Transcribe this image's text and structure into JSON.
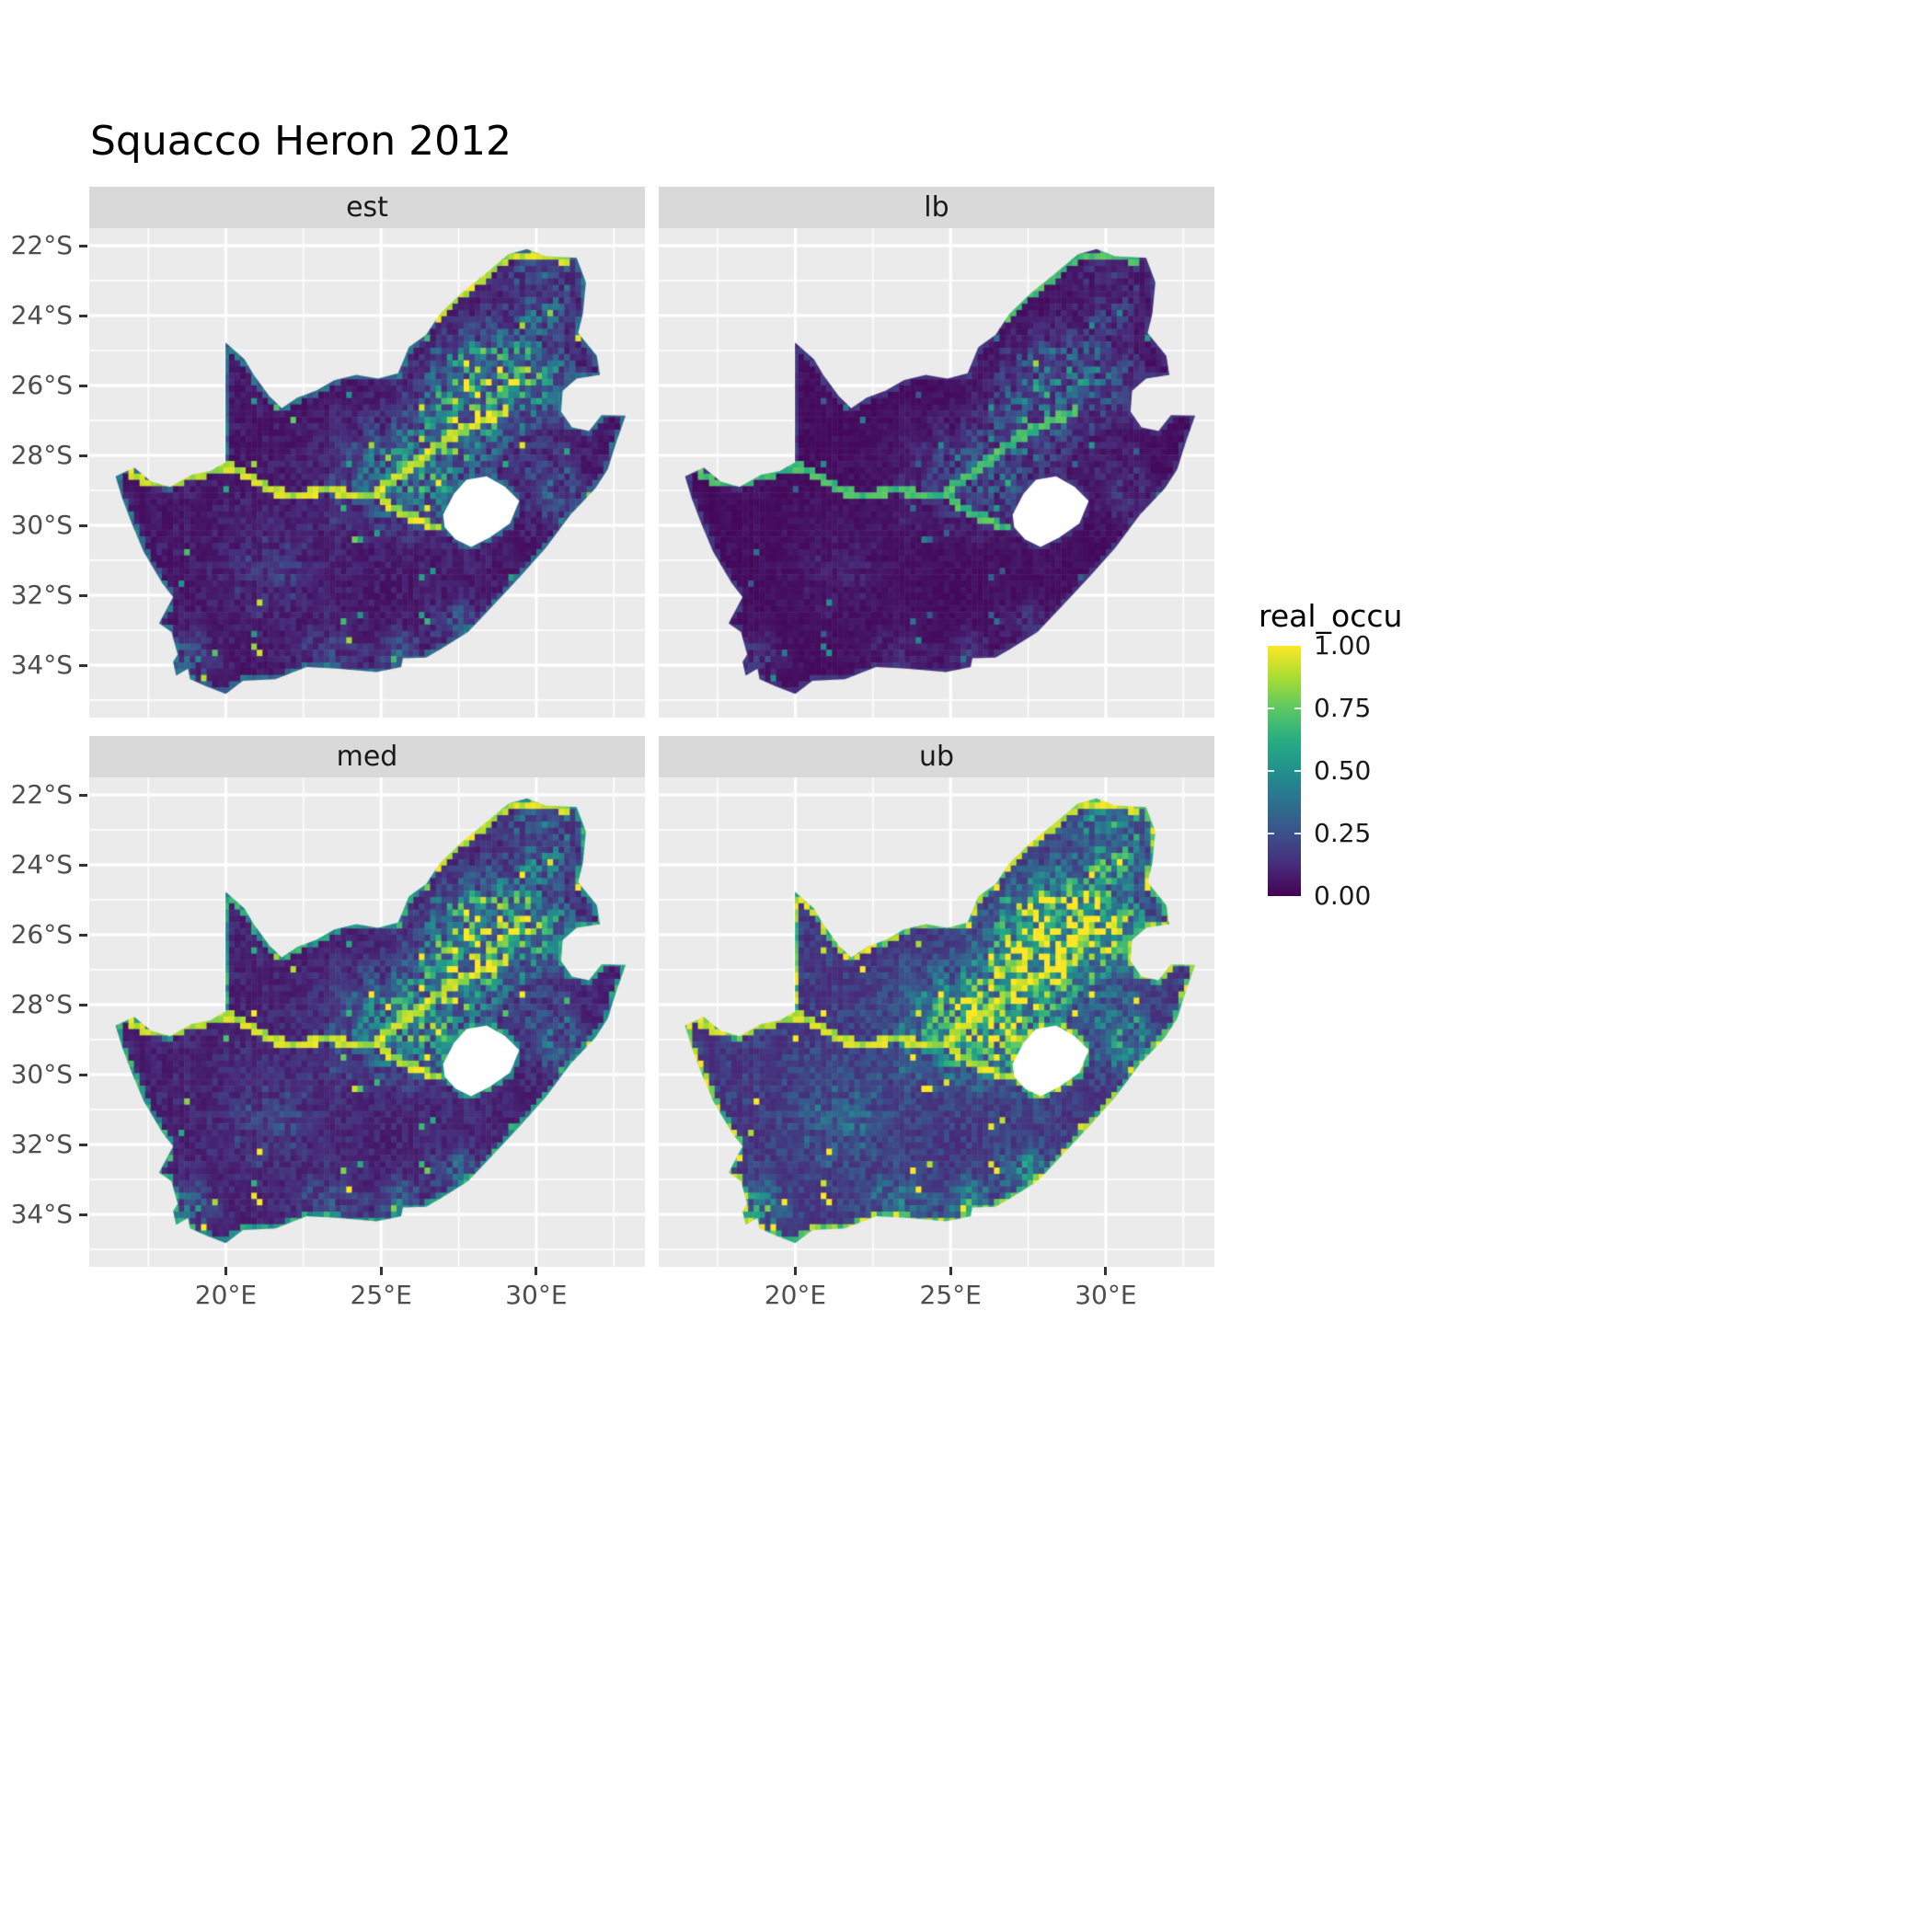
{
  "chart_data": {
    "type": "heatmap",
    "title": "Squacco Heron 2012",
    "facets": [
      {
        "label": "est",
        "mult": 1.0,
        "offset": 0.0,
        "edge": 0.45
      },
      {
        "label": "lb",
        "mult": 0.55,
        "offset": 0.0,
        "edge": 0.2
      },
      {
        "label": "med",
        "mult": 1.15,
        "offset": 0.02,
        "edge": 0.7
      },
      {
        "label": "ub",
        "mult": 1.6,
        "offset": 0.06,
        "edge": 1.0
      }
    ],
    "legend": {
      "title": "real_occu",
      "ticks": [
        {
          "value": 1.0,
          "label": "1.00"
        },
        {
          "value": 0.75,
          "label": "0.75"
        },
        {
          "value": 0.5,
          "label": "0.50"
        },
        {
          "value": 0.25,
          "label": "0.25"
        },
        {
          "value": 0.0,
          "label": "0.00"
        }
      ]
    },
    "x_axis": {
      "range": [
        15.6,
        33.5
      ],
      "ticks": [
        {
          "value": 20,
          "label": "20°E"
        },
        {
          "value": 25,
          "label": "25°E"
        },
        {
          "value": 30,
          "label": "30°E"
        }
      ]
    },
    "y_axis": {
      "range": [
        21.5,
        35.5
      ],
      "ticks": [
        {
          "value": 22,
          "label": "22°S"
        },
        {
          "value": 24,
          "label": "24°S"
        },
        {
          "value": 26,
          "label": "26°S"
        },
        {
          "value": 28,
          "label": "28°S"
        },
        {
          "value": 30,
          "label": "30°S"
        },
        {
          "value": 32,
          "label": "32°S"
        },
        {
          "value": 34,
          "label": "34°S"
        }
      ]
    },
    "viridis": [
      [
        0,
        "#440154"
      ],
      [
        0.125,
        "#472c7a"
      ],
      [
        0.25,
        "#3b518b"
      ],
      [
        0.375,
        "#2c718e"
      ],
      [
        0.5,
        "#21908d"
      ],
      [
        0.625,
        "#27ad81"
      ],
      [
        0.75,
        "#5cc863"
      ],
      [
        0.875,
        "#aadc32"
      ],
      [
        1,
        "#fde725"
      ]
    ],
    "colors": {
      "panel_bg": "#ebebeb",
      "strip_bg": "#d9d9d9",
      "grid": "#ffffff",
      "axis_text": "#4d4d4d",
      "na_fill": "#ffffff"
    },
    "map": {
      "outline": [
        [
          16.45,
          28.6
        ],
        [
          17.05,
          28.35
        ],
        [
          17.6,
          28.75
        ],
        [
          18.2,
          28.9
        ],
        [
          18.9,
          28.55
        ],
        [
          19.5,
          28.45
        ],
        [
          19.99,
          28.2
        ],
        [
          19.99,
          24.77
        ],
        [
          20.6,
          25.25
        ],
        [
          20.9,
          25.7
        ],
        [
          21.4,
          26.3
        ],
        [
          21.8,
          26.65
        ],
        [
          22.3,
          26.35
        ],
        [
          22.9,
          26.15
        ],
        [
          23.5,
          25.85
        ],
        [
          24.2,
          25.7
        ],
        [
          24.9,
          25.8
        ],
        [
          25.55,
          25.65
        ],
        [
          25.9,
          24.9
        ],
        [
          26.45,
          24.55
        ],
        [
          26.9,
          23.95
        ],
        [
          27.6,
          23.35
        ],
        [
          28.3,
          22.85
        ],
        [
          29.1,
          22.25
        ],
        [
          29.7,
          22.1
        ],
        [
          30.3,
          22.3
        ],
        [
          31.3,
          22.35
        ],
        [
          31.6,
          23.05
        ],
        [
          31.5,
          23.95
        ],
        [
          31.35,
          24.5
        ],
        [
          31.95,
          25.15
        ],
        [
          32.05,
          25.7
        ],
        [
          31.3,
          25.8
        ],
        [
          30.85,
          26.15
        ],
        [
          30.8,
          26.75
        ],
        [
          31.15,
          27.2
        ],
        [
          31.7,
          27.3
        ],
        [
          32.1,
          26.85
        ],
        [
          32.88,
          26.86
        ],
        [
          32.55,
          27.7
        ],
        [
          32.3,
          28.4
        ],
        [
          31.9,
          28.95
        ],
        [
          31.1,
          29.7
        ],
        [
          30.3,
          30.65
        ],
        [
          29.5,
          31.45
        ],
        [
          28.6,
          32.3
        ],
        [
          27.8,
          33.05
        ],
        [
          26.9,
          33.55
        ],
        [
          26.45,
          33.78
        ],
        [
          25.7,
          33.8
        ],
        [
          25.65,
          34.05
        ],
        [
          24.85,
          34.2
        ],
        [
          23.6,
          34.1
        ],
        [
          22.6,
          34.05
        ],
        [
          21.6,
          34.4
        ],
        [
          20.55,
          34.45
        ],
        [
          20.0,
          34.82
        ],
        [
          19.35,
          34.6
        ],
        [
          18.85,
          34.4
        ],
        [
          18.78,
          34.1
        ],
        [
          18.4,
          34.3
        ],
        [
          18.3,
          33.9
        ],
        [
          18.45,
          33.7
        ],
        [
          18.25,
          33.05
        ],
        [
          17.85,
          32.8
        ],
        [
          18.3,
          32.05
        ],
        [
          17.95,
          31.65
        ],
        [
          17.35,
          30.75
        ],
        [
          16.95,
          29.9
        ],
        [
          16.65,
          29.2
        ]
      ],
      "lesotho": [
        [
          27.0,
          29.7
        ],
        [
          27.35,
          29.1
        ],
        [
          27.75,
          28.7
        ],
        [
          28.4,
          28.6
        ],
        [
          29.0,
          28.9
        ],
        [
          29.45,
          29.3
        ],
        [
          29.15,
          29.95
        ],
        [
          28.5,
          30.35
        ],
        [
          27.9,
          30.62
        ],
        [
          27.4,
          30.4
        ],
        [
          27.05,
          30.05
        ]
      ],
      "rivers": [
        [
          [
            16.9,
            28.5
          ],
          [
            17.6,
            28.85
          ],
          [
            18.4,
            28.7
          ],
          [
            19.2,
            28.5
          ],
          [
            20.0,
            28.3
          ],
          [
            20.8,
            28.65
          ],
          [
            21.6,
            29.05
          ],
          [
            22.4,
            29.2
          ],
          [
            23.2,
            28.95
          ],
          [
            24.0,
            29.15
          ],
          [
            24.75,
            29.1
          ],
          [
            25.5,
            29.55
          ],
          [
            26.2,
            29.85
          ],
          [
            26.9,
            30.1
          ]
        ],
        [
          [
            24.75,
            29.1
          ],
          [
            25.6,
            28.6
          ],
          [
            26.3,
            28.1
          ],
          [
            27.0,
            27.6
          ],
          [
            27.7,
            27.25
          ],
          [
            28.4,
            26.95
          ],
          [
            29.05,
            26.75
          ]
        ],
        [
          [
            26.9,
            24.0
          ],
          [
            27.6,
            23.35
          ],
          [
            28.3,
            22.9
          ],
          [
            29.1,
            22.3
          ],
          [
            30.0,
            22.25
          ],
          [
            31.0,
            22.4
          ]
        ]
      ],
      "hotspots": [
        [
          28.1,
          26.2,
          0.85,
          1.5
        ],
        [
          26.6,
          28.4,
          0.55,
          1.5
        ],
        [
          29.9,
          25.7,
          0.45,
          1.3
        ],
        [
          30.6,
          28.9,
          0.3,
          0.9
        ],
        [
          24.5,
          28.6,
          0.3,
          1.4
        ],
        [
          30.2,
          23.2,
          0.35,
          1.2
        ],
        [
          18.9,
          33.7,
          0.35,
          0.6
        ],
        [
          25.6,
          33.8,
          0.3,
          0.7
        ],
        [
          27.5,
          32.8,
          0.25,
          0.9
        ],
        [
          23.3,
          33.8,
          0.2,
          1.0
        ],
        [
          21.5,
          31.3,
          0.15,
          1.5
        ]
      ]
    }
  }
}
